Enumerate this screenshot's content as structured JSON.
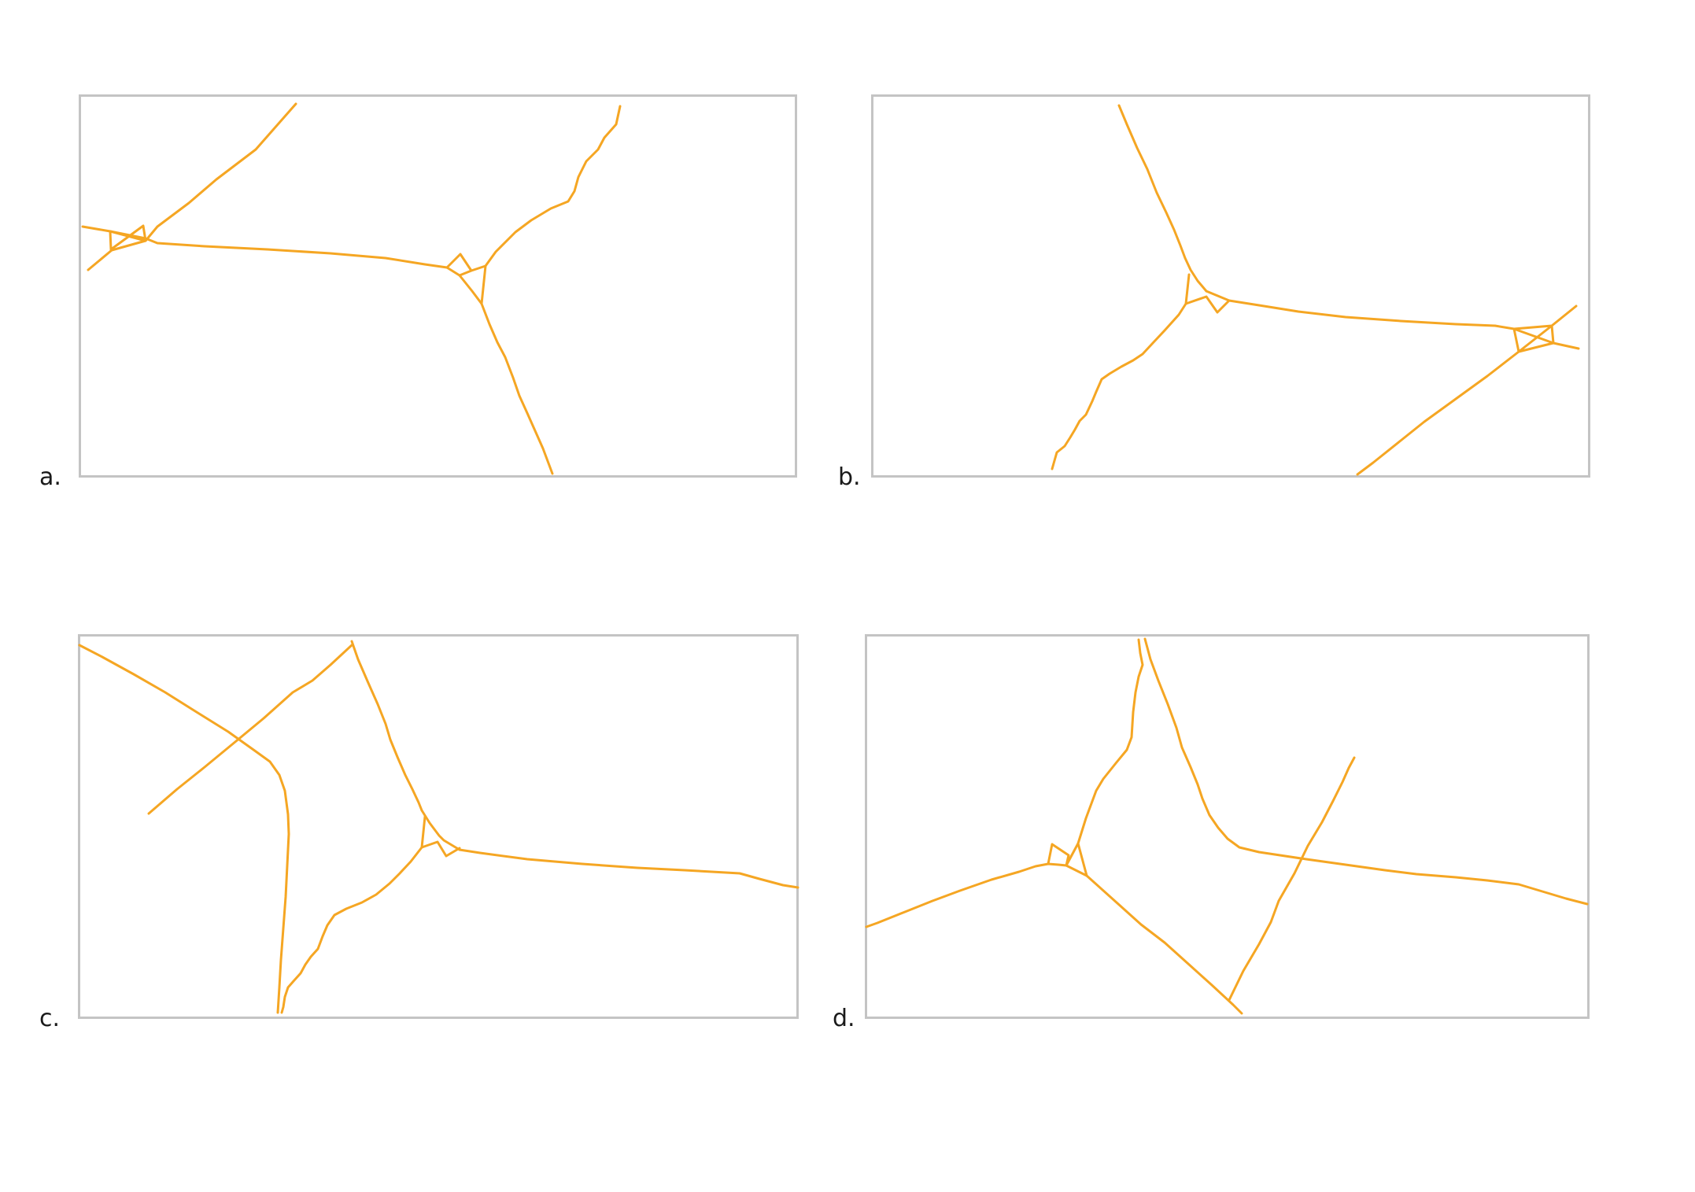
{
  "figure": {
    "road_color": "#F5A623",
    "frame_color": "#C4C4C4",
    "panels": [
      {
        "id": "a",
        "label": "a."
      },
      {
        "id": "b",
        "label": "b."
      },
      {
        "id": "c",
        "label": "c."
      },
      {
        "id": "d",
        "label": "d."
      }
    ]
  }
}
